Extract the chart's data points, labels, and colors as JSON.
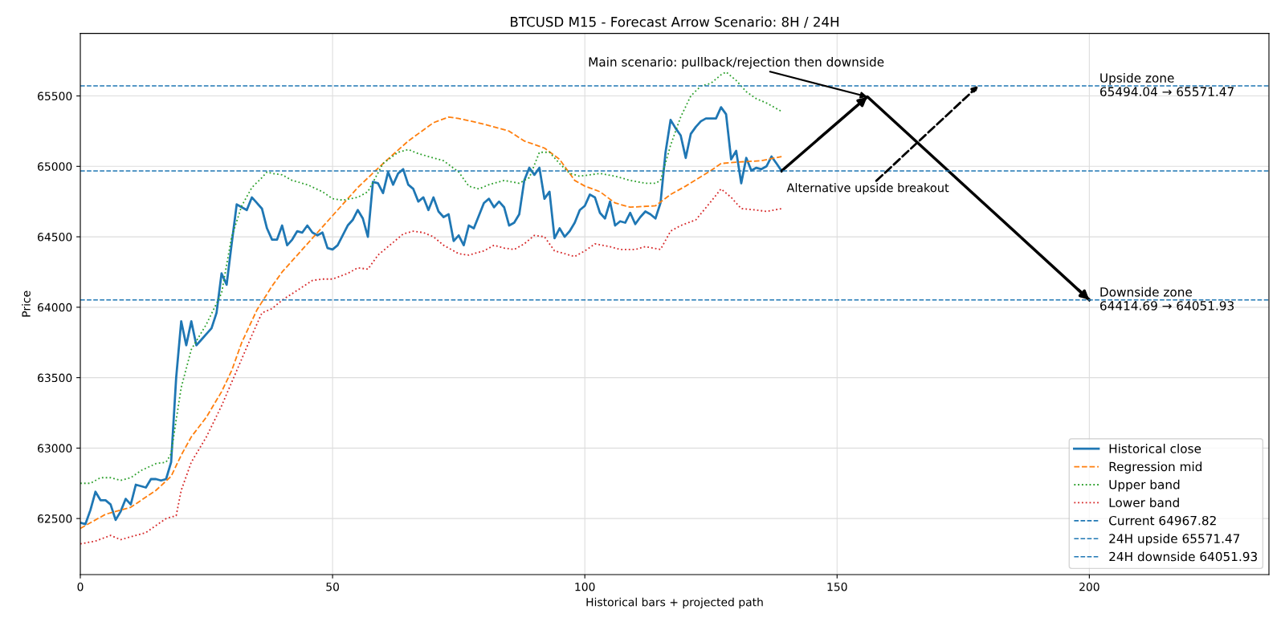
{
  "chart_data": {
    "type": "line",
    "title": "BTCUSD M15 - Forecast Arrow Scenario: 8H / 24H",
    "xlabel": "Historical bars + projected path",
    "ylabel": "Price",
    "xlim": [
      0,
      235.6
    ],
    "ylim": [
      62102,
      65944
    ],
    "xticks": [
      0,
      50,
      100,
      150,
      200
    ],
    "yticks": [
      62500,
      63000,
      63500,
      64000,
      64500,
      65000,
      65500
    ],
    "grid": true,
    "legend": "bottom right",
    "marker": "none",
    "series": [
      {
        "name": "Historical close",
        "color": "#1f77b4",
        "line_style": "solid",
        "x": [
          0,
          1,
          2,
          3,
          4,
          5,
          6,
          7,
          8,
          9,
          10,
          11,
          12,
          13,
          14,
          15,
          16,
          17,
          18,
          19,
          20,
          21,
          22,
          23,
          24,
          25,
          26,
          27,
          28,
          29,
          30,
          31,
          32,
          33,
          34,
          35,
          36,
          37,
          38,
          39,
          40,
          41,
          42,
          43,
          44,
          45,
          46,
          47,
          48,
          49,
          50,
          51,
          52,
          53,
          54,
          55,
          56,
          57,
          58,
          59,
          60,
          61,
          62,
          63,
          64,
          65,
          66,
          67,
          68,
          69,
          70,
          71,
          72,
          73,
          74,
          75,
          76,
          77,
          78,
          79,
          80,
          81,
          82,
          83,
          84,
          85,
          86,
          87,
          88,
          89,
          90,
          91,
          92,
          93,
          94,
          95,
          96,
          97,
          98,
          99,
          100,
          101,
          102,
          103,
          104,
          105,
          106,
          107,
          108,
          109,
          110,
          111,
          112,
          113,
          114,
          115,
          116,
          117,
          118,
          119,
          120,
          121,
          122,
          123,
          124,
          125,
          126,
          127,
          128,
          129,
          130,
          131,
          132,
          133,
          134,
          135,
          136,
          137,
          138,
          139
        ],
        "values": [
          62470,
          62460,
          62560,
          62690,
          62630,
          62630,
          62600,
          62490,
          62550,
          62640,
          62600,
          62740,
          62730,
          62720,
          62780,
          62780,
          62770,
          62780,
          62900,
          63500,
          63900,
          63730,
          63900,
          63730,
          63770,
          63810,
          63850,
          63960,
          64240,
          64160,
          64450,
          64730,
          64710,
          64690,
          64780,
          64740,
          64700,
          64560,
          64480,
          64480,
          64580,
          64440,
          64480,
          64540,
          64530,
          64580,
          64530,
          64510,
          64530,
          64420,
          64410,
          64440,
          64510,
          64580,
          64620,
          64690,
          64630,
          64500,
          64890,
          64880,
          64810,
          64960,
          64870,
          64950,
          64980,
          64870,
          64840,
          64750,
          64780,
          64690,
          64780,
          64680,
          64640,
          64660,
          64470,
          64510,
          64440,
          64580,
          64560,
          64650,
          64740,
          64770,
          64710,
          64750,
          64710,
          64580,
          64600,
          64660,
          64900,
          64990,
          64940,
          64990,
          64770,
          64820,
          64490,
          64560,
          64500,
          64540,
          64600,
          64690,
          64720,
          64800,
          64780,
          64670,
          64630,
          64750,
          64580,
          64610,
          64600,
          64670,
          64590,
          64640,
          64680,
          64660,
          64630,
          64740,
          65100,
          65330,
          65270,
          65220,
          65060,
          65230,
          65280,
          65320,
          65340,
          65340,
          65340,
          65420,
          65370,
          65050,
          65110,
          64880,
          65060,
          64970,
          64990,
          64980,
          65000,
          65070,
          65020,
          64967.82
        ]
      },
      {
        "name": "Regression mid",
        "color": "#ff7f0e",
        "line_style": "dashed",
        "x": [
          0,
          5,
          10,
          15,
          18,
          20,
          22,
          25,
          28,
          30,
          32,
          35,
          38,
          40,
          45,
          50,
          55,
          60,
          65,
          70,
          73,
          75,
          80,
          85,
          88,
          92,
          95,
          98,
          100,
          103,
          106,
          109,
          114,
          117,
          120,
          125,
          127,
          130,
          135,
          139
        ],
        "values": [
          62430,
          62530,
          62580,
          62700,
          62800,
          62950,
          63080,
          63220,
          63400,
          63550,
          63750,
          63980,
          64150,
          64250,
          64450,
          64650,
          64850,
          65020,
          65180,
          65310,
          65350,
          65340,
          65300,
          65250,
          65180,
          65130,
          65050,
          64900,
          64860,
          64820,
          64740,
          64710,
          64720,
          64800,
          64860,
          64970,
          65020,
          65030,
          65040,
          65070
        ]
      },
      {
        "name": "Upper band",
        "color": "#2ca02c",
        "line_style": "dotted",
        "x": [
          0,
          2,
          4,
          6,
          8,
          10,
          12,
          15,
          17,
          18,
          19,
          20,
          22,
          25,
          28,
          30,
          32,
          34,
          36,
          37,
          38,
          40,
          42,
          45,
          48,
          50,
          52,
          55,
          57,
          60,
          63,
          65,
          67,
          70,
          72,
          75,
          77,
          79,
          81,
          84,
          87,
          89,
          91,
          93,
          95,
          97,
          99,
          101,
          103,
          106,
          109,
          112,
          114,
          115,
          117,
          119,
          121,
          123,
          125,
          127,
          128,
          130,
          132,
          134,
          136,
          139
        ],
        "values": [
          62750,
          62750,
          62790,
          62790,
          62770,
          62790,
          62840,
          62890,
          62900,
          62960,
          63200,
          63430,
          63700,
          63880,
          64100,
          64500,
          64720,
          64850,
          64920,
          64960,
          64950,
          64940,
          64900,
          64870,
          64820,
          64770,
          64760,
          64780,
          64820,
          65020,
          65100,
          65120,
          65090,
          65060,
          65040,
          64960,
          64860,
          64840,
          64870,
          64900,
          64880,
          64920,
          65100,
          65100,
          65020,
          64950,
          64930,
          64940,
          64950,
          64930,
          64900,
          64880,
          64880,
          64900,
          65150,
          65350,
          65500,
          65570,
          65590,
          65650,
          65670,
          65610,
          65530,
          65480,
          65450,
          65390
        ]
      },
      {
        "name": "Lower band",
        "color": "#d62728",
        "line_style": "dotted",
        "x": [
          0,
          3,
          6,
          8,
          10,
          13,
          15,
          17,
          19,
          20,
          22,
          25,
          28,
          31,
          34,
          36,
          38,
          40,
          43,
          46,
          48,
          50,
          53,
          55,
          57,
          59,
          62,
          64,
          66,
          68,
          70,
          72,
          75,
          77,
          80,
          82,
          84,
          86,
          88,
          90,
          92,
          94,
          96,
          98,
          100,
          102,
          105,
          107,
          110,
          112,
          115,
          117,
          119,
          122,
          125,
          127,
          129,
          131,
          134,
          136,
          139
        ],
        "values": [
          62320,
          62340,
          62380,
          62350,
          62370,
          62400,
          62450,
          62500,
          62520,
          62700,
          62900,
          63080,
          63300,
          63550,
          63800,
          63960,
          63990,
          64050,
          64120,
          64190,
          64200,
          64200,
          64240,
          64280,
          64270,
          64370,
          64460,
          64520,
          64540,
          64530,
          64500,
          64440,
          64380,
          64370,
          64400,
          64440,
          64420,
          64410,
          64450,
          64510,
          64500,
          64400,
          64380,
          64360,
          64400,
          64450,
          64430,
          64410,
          64410,
          64430,
          64410,
          64540,
          64580,
          64620,
          64750,
          64840,
          64780,
          64700,
          64690,
          64680,
          64700
        ]
      },
      {
        "type": "line",
        "color": "#000000",
        "line_style": "solid",
        "x": [
          139,
          156,
          200
        ],
        "values": [
          64967.82,
          65494.04,
          64051.93
        ]
      }
    ],
    "ref_lines": [
      {
        "axis": "y",
        "value": 64967.82,
        "label": "Current 64967.82",
        "color": "#1f77b4",
        "line_style": "dashed"
      },
      {
        "axis": "y",
        "value": 65571.47,
        "label": "24H upside 65571.47",
        "color": "#1f77b4",
        "line_style": "dashed"
      },
      {
        "axis": "y",
        "value": 64051.93,
        "label": "24H downside 64051.93",
        "color": "#1f77b4",
        "line_style": "dashed"
      }
    ],
    "annotations": [
      {
        "text": "Main scenario: pullback/rejection then downside",
        "x": 156,
        "y": 65494.04
      },
      {
        "text": "Alternative upside breakout",
        "x": 178,
        "y": 65571.47
      },
      {
        "text": "Upside zone\n65494.04 → 65571.47",
        "x": 202,
        "y": 65571.47
      },
      {
        "text": "Downside zone\n64414.69 → 64051.93",
        "x": 202,
        "y": 64051.93
      }
    ]
  }
}
